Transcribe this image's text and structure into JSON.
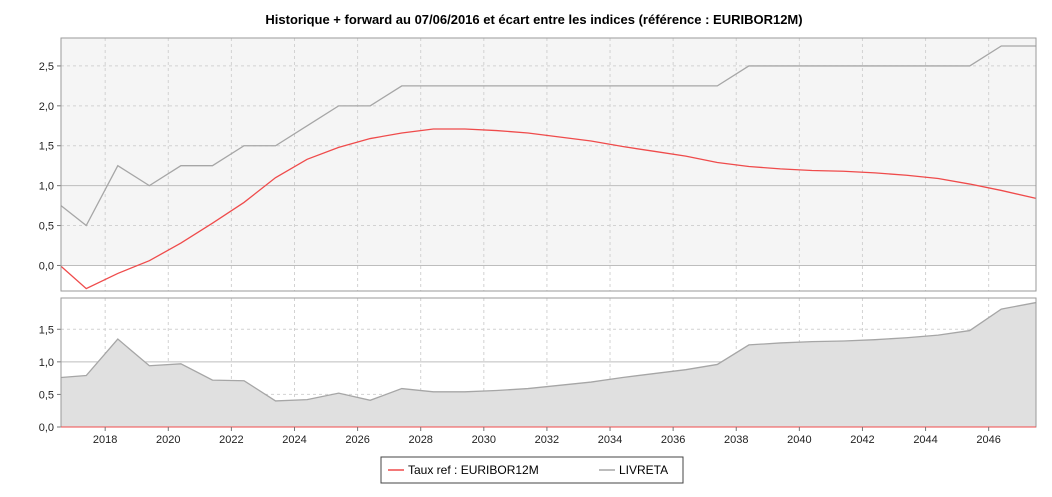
{
  "chart_data": {
    "type": "line",
    "title": "Historique + forward au 07/06/2016 et écart entre les indices (référence : EURIBOR12M)",
    "x_ticks": [
      "2018",
      "2020",
      "2022",
      "2024",
      "2026",
      "2028",
      "2030",
      "2032",
      "2034",
      "2036",
      "2038",
      "2040",
      "2042",
      "2044",
      "2046"
    ],
    "xlim": [
      2016.6,
      2047.5
    ],
    "top_panel": {
      "ylim": [
        -0.32,
        2.85
      ],
      "y_ticks": [
        "0,0",
        "0,5",
        "1,0",
        "1,5",
        "2,0",
        "2,5"
      ],
      "y_tick_values": [
        0,
        0.5,
        1.0,
        1.5,
        2.0,
        2.5
      ],
      "band": [
        0,
        2.85
      ],
      "series": [
        {
          "name": "Taux ref : EURIBOR12M",
          "color": "#ef4b4b",
          "points": [
            [
              2016.6,
              -0.01
            ],
            [
              2017.4,
              -0.29
            ],
            [
              2018.4,
              -0.1
            ],
            [
              2019.4,
              0.06
            ],
            [
              2020.4,
              0.28
            ],
            [
              2021.4,
              0.53
            ],
            [
              2022.4,
              0.79
            ],
            [
              2023.4,
              1.1
            ],
            [
              2024.4,
              1.33
            ],
            [
              2025.4,
              1.48
            ],
            [
              2026.4,
              1.59
            ],
            [
              2027.4,
              1.66
            ],
            [
              2028.4,
              1.71
            ],
            [
              2029.4,
              1.71
            ],
            [
              2030.4,
              1.69
            ],
            [
              2031.4,
              1.66
            ],
            [
              2032.4,
              1.61
            ],
            [
              2033.4,
              1.56
            ],
            [
              2034.4,
              1.49
            ],
            [
              2035.4,
              1.43
            ],
            [
              2036.4,
              1.37
            ],
            [
              2037.4,
              1.29
            ],
            [
              2038.4,
              1.24
            ],
            [
              2039.4,
              1.21
            ],
            [
              2040.4,
              1.19
            ],
            [
              2041.4,
              1.18
            ],
            [
              2042.4,
              1.16
            ],
            [
              2043.4,
              1.13
            ],
            [
              2044.4,
              1.09
            ],
            [
              2045.4,
              1.02
            ],
            [
              2046.4,
              0.94
            ],
            [
              2047.5,
              0.84
            ]
          ]
        },
        {
          "name": "LIVRETA",
          "color": "#a6a6a6",
          "points": [
            [
              2016.6,
              0.75
            ],
            [
              2017.4,
              0.5
            ],
            [
              2018.4,
              1.25
            ],
            [
              2019.4,
              1.0
            ],
            [
              2020.4,
              1.25
            ],
            [
              2021.4,
              1.25
            ],
            [
              2022.4,
              1.5
            ],
            [
              2023.4,
              1.5
            ],
            [
              2024.4,
              1.75
            ],
            [
              2025.4,
              2.0
            ],
            [
              2026.4,
              2.0
            ],
            [
              2027.4,
              2.25
            ],
            [
              2028.4,
              2.25
            ],
            [
              2029.4,
              2.25
            ],
            [
              2030.4,
              2.25
            ],
            [
              2031.4,
              2.25
            ],
            [
              2032.4,
              2.25
            ],
            [
              2033.4,
              2.25
            ],
            [
              2034.4,
              2.25
            ],
            [
              2035.4,
              2.25
            ],
            [
              2036.4,
              2.25
            ],
            [
              2037.4,
              2.25
            ],
            [
              2038.4,
              2.5
            ],
            [
              2039.4,
              2.5
            ],
            [
              2040.4,
              2.5
            ],
            [
              2041.4,
              2.5
            ],
            [
              2042.4,
              2.5
            ],
            [
              2043.4,
              2.5
            ],
            [
              2044.4,
              2.5
            ],
            [
              2045.4,
              2.5
            ],
            [
              2046.4,
              2.75
            ],
            [
              2047.5,
              2.75
            ]
          ]
        }
      ]
    },
    "bottom_panel": {
      "type": "area",
      "ylim": [
        0,
        1.98
      ],
      "y_ticks": [
        "0,0",
        "0,5",
        "1,0",
        "1,5"
      ],
      "y_tick_values": [
        0,
        0.5,
        1.0,
        1.5
      ],
      "series": [
        {
          "color": "#a6a6a6",
          "points": [
            [
              2016.6,
              0.76
            ],
            [
              2017.4,
              0.79
            ],
            [
              2018.4,
              1.35
            ],
            [
              2019.4,
              0.94
            ],
            [
              2020.4,
              0.97
            ],
            [
              2021.4,
              0.72
            ],
            [
              2022.4,
              0.71
            ],
            [
              2023.4,
              0.4
            ],
            [
              2024.4,
              0.42
            ],
            [
              2025.4,
              0.52
            ],
            [
              2026.4,
              0.41
            ],
            [
              2027.4,
              0.59
            ],
            [
              2028.4,
              0.54
            ],
            [
              2029.4,
              0.54
            ],
            [
              2030.4,
              0.56
            ],
            [
              2031.4,
              0.59
            ],
            [
              2032.4,
              0.64
            ],
            [
              2033.4,
              0.69
            ],
            [
              2034.4,
              0.76
            ],
            [
              2035.4,
              0.82
            ],
            [
              2036.4,
              0.88
            ],
            [
              2037.4,
              0.96
            ],
            [
              2038.4,
              1.26
            ],
            [
              2039.4,
              1.29
            ],
            [
              2040.4,
              1.31
            ],
            [
              2041.4,
              1.32
            ],
            [
              2042.4,
              1.34
            ],
            [
              2043.4,
              1.37
            ],
            [
              2044.4,
              1.41
            ],
            [
              2045.4,
              1.48
            ],
            [
              2046.4,
              1.81
            ],
            [
              2047.5,
              1.91
            ]
          ]
        }
      ]
    },
    "grid": true,
    "legend": {
      "placement": "bottom-center",
      "items": [
        {
          "label": "Taux ref : EURIBOR12M",
          "color": "#ef4b4b"
        },
        {
          "label": "LIVRETA",
          "color": "#a6a6a6"
        }
      ]
    }
  }
}
